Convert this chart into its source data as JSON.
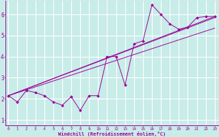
{
  "xlabel": "Windchill (Refroidissement éolien,°C)",
  "bg_color": "#c8ece8",
  "grid_color": "#b0dcd8",
  "line_color": "#990099",
  "xlim_min": -0.3,
  "xlim_max": 23.4,
  "ylim_min": 0.75,
  "ylim_max": 6.65,
  "xticks": [
    0,
    1,
    2,
    3,
    4,
    5,
    6,
    7,
    8,
    9,
    10,
    11,
    12,
    13,
    14,
    15,
    16,
    17,
    18,
    19,
    20,
    21,
    22,
    23
  ],
  "yticks": [
    1,
    2,
    3,
    4,
    5,
    6
  ],
  "data_x": [
    0,
    1,
    2,
    3,
    4,
    5,
    6,
    7,
    8,
    9,
    10,
    11,
    12,
    13,
    14,
    15,
    16,
    17,
    18,
    19,
    20,
    21,
    22,
    23
  ],
  "data_y": [
    2.15,
    1.85,
    2.4,
    2.3,
    2.15,
    1.85,
    1.7,
    2.1,
    1.45,
    2.15,
    2.15,
    4.0,
    4.0,
    2.65,
    4.6,
    4.75,
    6.45,
    6.0,
    5.55,
    5.3,
    5.4,
    5.85,
    5.9,
    5.9
  ],
  "reg_lines": [
    {
      "x0": 0,
      "y0": 2.15,
      "x1": 23,
      "y1": 5.85
    },
    {
      "x0": 0,
      "y0": 2.15,
      "x1": 23,
      "y1": 5.35
    },
    {
      "x0": 0,
      "y0": 2.15,
      "x1": 23,
      "y1": 5.9
    }
  ]
}
